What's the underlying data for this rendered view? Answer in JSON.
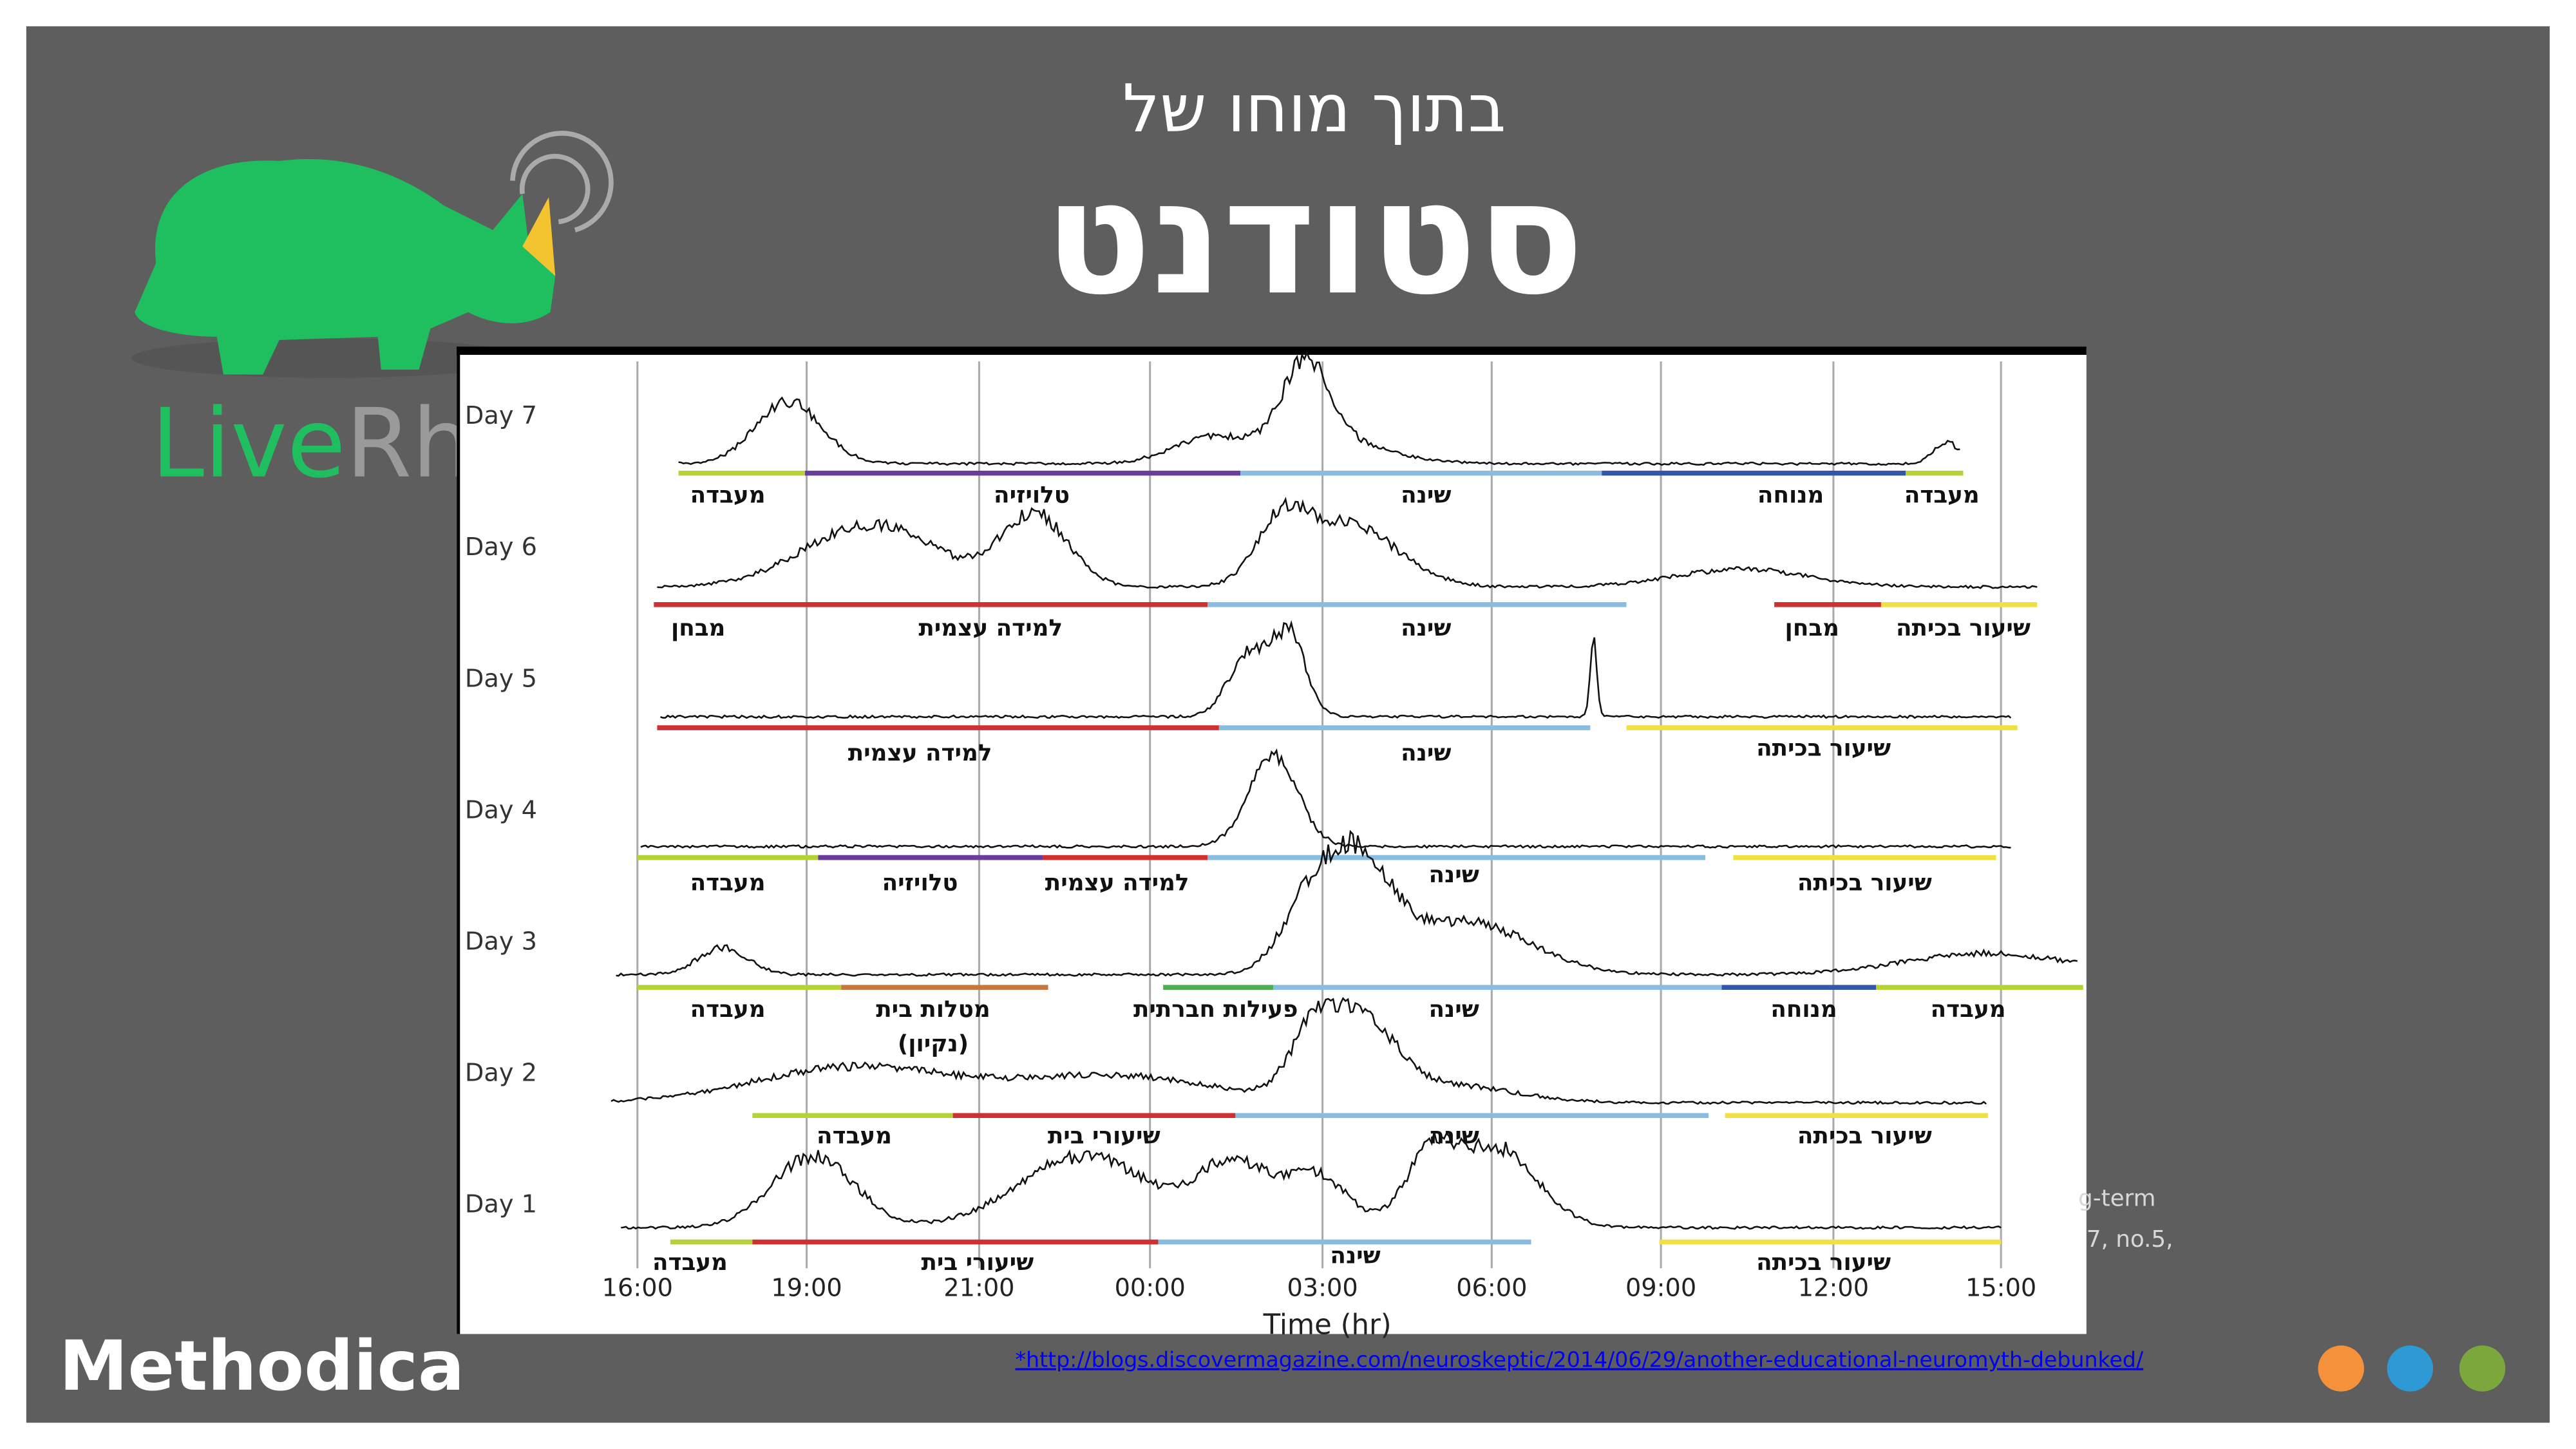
{
  "header": {
    "title_line1": "בתוך מוחו של",
    "title_line2": "סטודנט"
  },
  "logo": {
    "live": "Live",
    "rhino": "Rhino"
  },
  "chart": {
    "days": [
      {
        "label": "Day 7",
        "activities": [
          "מעבדה",
          "טלויזיה",
          "שינה",
          "מנוחה",
          "מעבדה"
        ]
      },
      {
        "label": "Day 6",
        "activities": [
          "מבחן",
          "למידה עצמית",
          "שינה",
          "מבחן",
          "שיעור בכיתה"
        ]
      },
      {
        "label": "Day 5",
        "activities": [
          "למידה עצמית",
          "שינה",
          "שיעור בכיתה"
        ]
      },
      {
        "label": "Day 4",
        "activities": [
          "מעבדה",
          "טלויזיה",
          "למידה עצמית",
          "שינה",
          "שיעור בכיתה"
        ]
      },
      {
        "label": "Day 3",
        "activities": [
          "מעבדה",
          "מטלות בית",
          "(נקיון)",
          "פעילות חברתית",
          "שינה",
          "מנוחה",
          "מעבדה"
        ]
      },
      {
        "label": "Day 2",
        "activities": [
          "מעבדה",
          "שיעורי בית",
          "שינה",
          "שיעור בכיתה"
        ]
      },
      {
        "label": "Day 1",
        "activities": [
          "מעבדה",
          "שיעורי בית",
          "שינה",
          "שיעור בכיתה"
        ]
      }
    ],
    "time_ticks": [
      "16:00",
      "19:00",
      "21:00",
      "00:00",
      "03:00",
      "06:00",
      "09:00",
      "12:00",
      "15:00"
    ],
    "axis_title": "Time (hr)"
  },
  "footer": {
    "brand": "Methodica",
    "link": "*http://blogs.discovermagazine.com/neuroskeptic/2014/06/29/another-educational-neuromyth-debunked/",
    "fragments": [
      "g-term",
      "7, no.5,"
    ]
  }
}
